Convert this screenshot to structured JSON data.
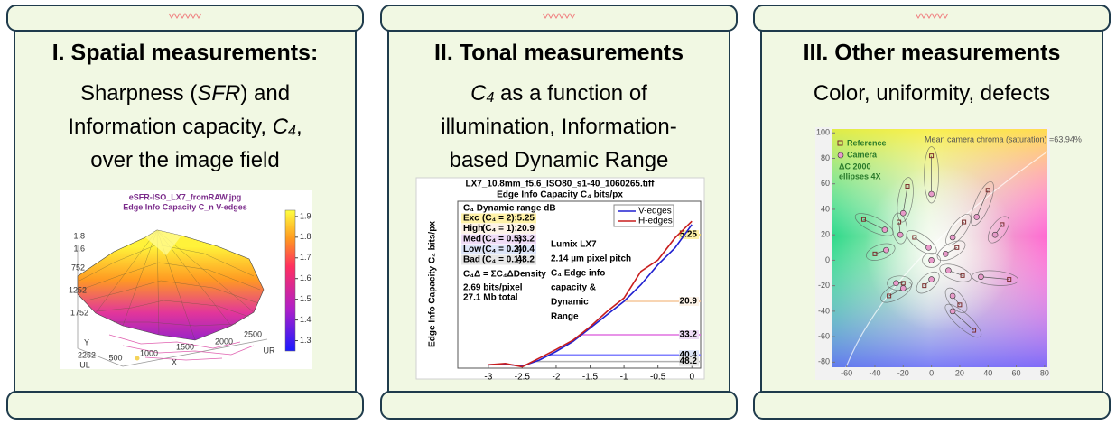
{
  "panels": [
    {
      "title": "I. Spatial measurements:",
      "body": [
        [
          "Sharpness (",
          "SFR",
          ") and"
        ],
        [
          "Information capacity, ",
          "C",
          "4",
          ","
        ],
        [
          "over the image field"
        ]
      ],
      "figure": {
        "title": "eSFR-ISO_LX7_fromRAW.jpg",
        "subtitle": "Edge Info Capacity C_n   V-edges",
        "colorbar_lim": [
          1.25,
          1.93
        ],
        "colorbar_ticks": [
          1.3,
          1.4,
          1.5,
          1.6,
          1.7,
          1.8,
          1.9
        ],
        "z_ticks": [
          "1.6",
          "1.8"
        ],
        "y_ticks": [
          "752",
          "1252",
          "1752",
          "2252"
        ],
        "x_ticks": [
          "500",
          "1000",
          "1500",
          "2000",
          "2500"
        ],
        "x_label": "X",
        "y_label": "Y",
        "corner_labels": [
          "UL",
          "UR"
        ]
      }
    },
    {
      "title": "II. Tonal measurements",
      "body": [
        [
          "C",
          "4",
          " as a function of"
        ],
        [
          "illumination, Information-"
        ],
        [
          "based Dynamic Range"
        ]
      ],
      "figure": {
        "type": "line",
        "title": "LX7_10.8mm_f5.6_ISO80_s1-40_1060265.tiff",
        "subtitle": "Edge Info Capacity C₄ bits/px",
        "y_label": "Edge Info Capacity C₄ bits/px",
        "x": [
          -3,
          -2.75,
          -2.5,
          -2.25,
          -2,
          -1.75,
          -1.5,
          -1.25,
          -1,
          -0.75,
          -0.5,
          -0.25,
          0
        ],
        "series": [
          {
            "name": "V-edges",
            "color": "#2020d0",
            "values": [
              0.05,
              0.06,
              0.03,
              0.12,
              0.25,
              0.4,
              0.6,
              0.8,
              1.0,
              1.25,
              1.55,
              1.8,
              2.15
            ]
          },
          {
            "name": "H-edges",
            "color": "#c81e1e",
            "values": [
              0.05,
              0.07,
              0.02,
              0.15,
              0.28,
              0.42,
              0.62,
              0.85,
              1.05,
              1.45,
              1.62,
              1.95,
              2.2
            ]
          }
        ],
        "xlim": [
          -3.45,
          0.13
        ],
        "ylim": [
          0,
          2.5
        ],
        "xticks": [
          -3,
          -2.5,
          -2,
          -1.5,
          -1,
          -0.5,
          0
        ],
        "dynamic_range": {
          "title": "C₄ Dynamic range dB",
          "rows": [
            {
              "grade": "Exc",
              "condition": "(C₄ = 2):",
              "c4": 2,
              "value": 5.25,
              "color": "#fff2a8",
              "line_color": "#f2d65c"
            },
            {
              "grade": "High",
              "condition": "(C₄ = 1):",
              "c4": 1,
              "value": 20.9,
              "color": "#fdf3e8",
              "line_color": "#f6c79a"
            },
            {
              "grade": "Med",
              "condition": "(C₄ = 0.5):",
              "c4": 0.5,
              "value": 33.2,
              "color": "#efdcf6",
              "line_color": "#e070e0"
            },
            {
              "grade": "Low",
              "condition": "(C₄ = 0.2):",
              "c4": 0.2,
              "value": 40.4,
              "color": "#dde5f8",
              "line_color": "#8080ff"
            },
            {
              "grade": "Bad",
              "condition": "(C₄ = 0.1):",
              "c4": 0.1,
              "value": 48.2,
              "color": "#e6e6e6",
              "line_color": "#b0b0b0"
            }
          ]
        },
        "notes": [
          "C₄Δ = ΣC₄ΔDensity",
          "2.69 bits/pixel",
          "27.1 Mb total"
        ],
        "annotation": [
          "Lumix LX7",
          "2.14 µm pixel pitch",
          "C₄ Edge info",
          "capacity &",
          "Dynamic",
          "Range"
        ]
      }
    },
    {
      "title": "III. Other measurements",
      "body": [
        [
          "Color, uniformity, defects"
        ]
      ],
      "figure": {
        "type": "scatter",
        "note": "Mean camera chroma (saturation) =63.94%",
        "legend_note": [
          "ΔC 2000",
          "ellipses 4X"
        ],
        "xlim": [
          -70,
          82
        ],
        "ylim": [
          -84,
          103
        ],
        "xticks": [
          -60,
          -40,
          -20,
          0,
          20,
          40,
          60,
          80
        ],
        "yticks": [
          -80,
          -60,
          -40,
          -20,
          0,
          20,
          40,
          60,
          80,
          100
        ],
        "series": [
          {
            "name": "Reference",
            "color": "#7a2d2d",
            "x": [
              0,
              -17,
              40,
              -48,
              -23,
              50,
              23,
              -12,
              18,
              -40,
              55,
              -30,
              -5,
              20,
              30,
              -20,
              0,
              22
            ],
            "y": [
              82,
              58,
              55,
              32,
              30,
              28,
              30,
              18,
              10,
              5,
              -15,
              -28,
              -20,
              -35,
              -55,
              -18,
              0,
              -12
            ]
          },
          {
            "name": "Camera",
            "color": "#e79ac9",
            "x": [
              0,
              -20,
              32,
              -33,
              -22,
              45,
              15,
              -2,
              10,
              -32,
              35,
              -20,
              0,
              15,
              15,
              -25,
              0,
              12
            ],
            "y": [
              52,
              37,
              34,
              24,
              20,
              20,
              18,
              10,
              5,
              8,
              -13,
              -22,
              -15,
              -28,
              -40,
              -18,
              0,
              -8
            ]
          }
        ]
      }
    }
  ]
}
